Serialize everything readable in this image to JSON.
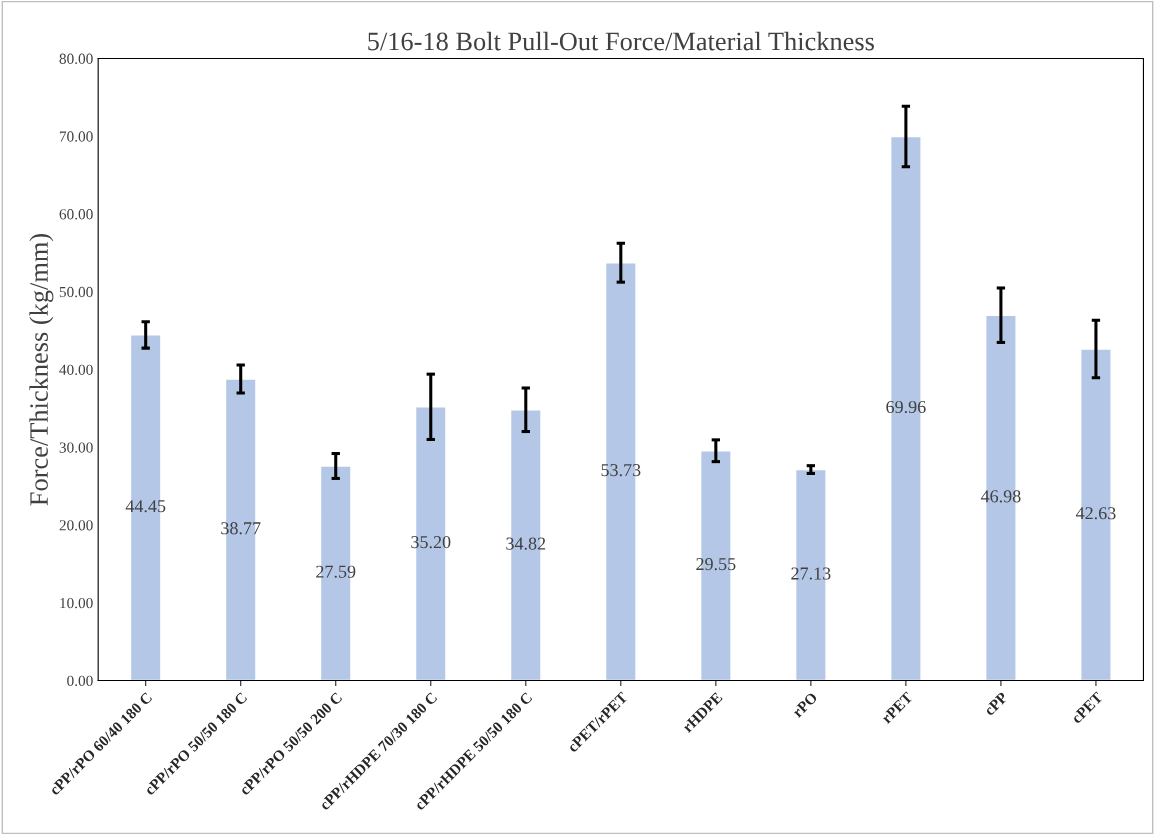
{
  "chart_data": {
    "type": "bar",
    "title": "5/16-18 Bolt Pull-Out Force/Material Thickness",
    "ylabel": "Force/Thickness (kg/mm)",
    "categories": [
      "cPP/rPO 60/40 180 C",
      "cPP/rPO 50/50 180 C",
      "cPP/rPO 50/50 200 C",
      "cPP/rHDPE 70/30 180 C",
      "cPP/rHDPE 50/50 180 C",
      "cPET/rPET",
      "rHDPE",
      "rPO",
      "rPET",
      "cPP",
      "cPET"
    ],
    "values": [
      44.45,
      38.77,
      27.59,
      35.2,
      34.82,
      53.73,
      29.55,
      27.13,
      69.96,
      46.98,
      42.63
    ],
    "value_labels": [
      "44.45",
      "38.77",
      "27.59",
      "35.20",
      "34.82",
      "53.73",
      "29.55",
      "27.13",
      "69.96",
      "46.98",
      "42.63"
    ],
    "errors": [
      1.7,
      1.8,
      1.6,
      4.2,
      2.8,
      2.5,
      1.4,
      0.5,
      3.9,
      3.5,
      3.7
    ],
    "color": "#b4c7e7",
    "ylim": [
      0,
      80
    ],
    "yticks": [
      {
        "value": 0,
        "label": "0.00"
      },
      {
        "value": 10,
        "label": "10.00"
      },
      {
        "value": 20,
        "label": "20.00"
      },
      {
        "value": 30,
        "label": "30.00"
      },
      {
        "value": 40,
        "label": "40.00"
      },
      {
        "value": 50,
        "label": "50.00"
      },
      {
        "value": 60,
        "label": "60.00"
      },
      {
        "value": 70,
        "label": "70.00"
      },
      {
        "value": 80,
        "label": "80.00"
      }
    ],
    "grid": false
  }
}
